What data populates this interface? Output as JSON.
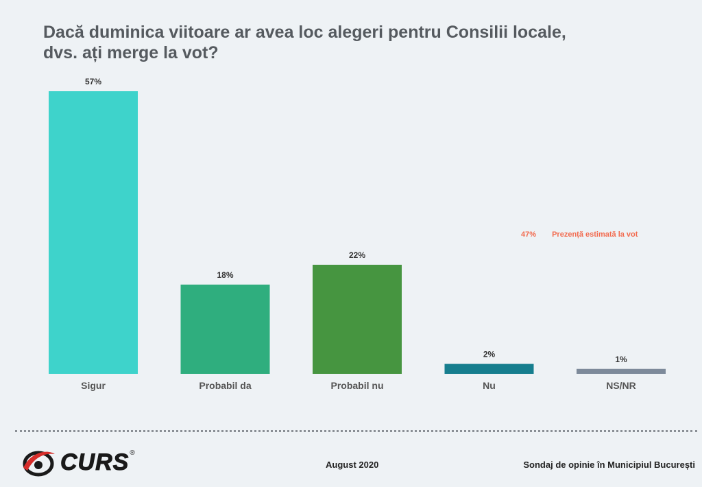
{
  "title_lines": [
    "Dacă duminica viitoare ar avea loc alegeri pentru Consilii locale,",
    "dvs. ați merge la vot?"
  ],
  "chart_data": {
    "type": "bar",
    "title": "Dacă duminica viitoare ar avea loc alegeri pentru Consilii locale, dvs. ați merge la vot?",
    "categories": [
      "Sigur",
      "Probabil da",
      "Probabil nu",
      "Nu",
      "NS/NR"
    ],
    "values": [
      57,
      18,
      22,
      2,
      1
    ],
    "value_labels": [
      "57%",
      "18%",
      "22%",
      "2%",
      "1%"
    ],
    "colors": [
      "#3ed3cb",
      "#2fae7e",
      "#469540",
      "#167e8e",
      "#7d8a9a"
    ],
    "ylim": [
      0,
      57
    ],
    "grid": false,
    "legend": "none"
  },
  "annotation": {
    "value": "47%",
    "label": "Prezență estimată la vot",
    "color": "#f26b4f"
  },
  "footer": {
    "logo_text": "CURS",
    "logo_reg": "®",
    "date": "August 2020",
    "source": "Sondaj de opinie în Municipiul București"
  }
}
